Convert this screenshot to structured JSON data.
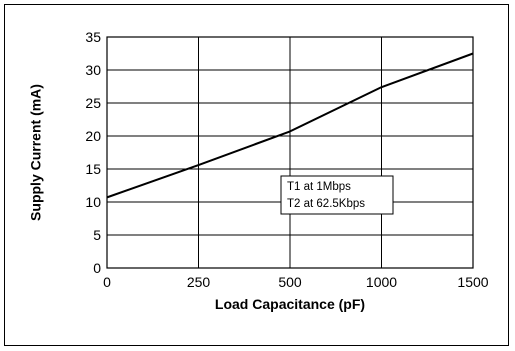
{
  "chart_data": {
    "type": "line",
    "title": "",
    "xlabel": "Load Capacitance (pF)",
    "ylabel": "Supply Current (mA)",
    "x_categories": [
      "0",
      "250",
      "500",
      "1000",
      "1500"
    ],
    "ylim": [
      0,
      35
    ],
    "yticks": [
      0,
      5,
      10,
      15,
      20,
      25,
      30,
      35
    ],
    "grid": true,
    "series": [
      {
        "x": [
          "0",
          "250",
          "500",
          "1000",
          "1500"
        ],
        "y": [
          10.7,
          15.6,
          20.7,
          27.4,
          32.5
        ]
      }
    ],
    "annotation": {
      "lines": [
        "T1 at 1Mbps",
        "T2 at 62.5Kbps"
      ]
    },
    "colors": {
      "line": "#000000",
      "grid": "#000000",
      "background": "#ffffff"
    }
  }
}
